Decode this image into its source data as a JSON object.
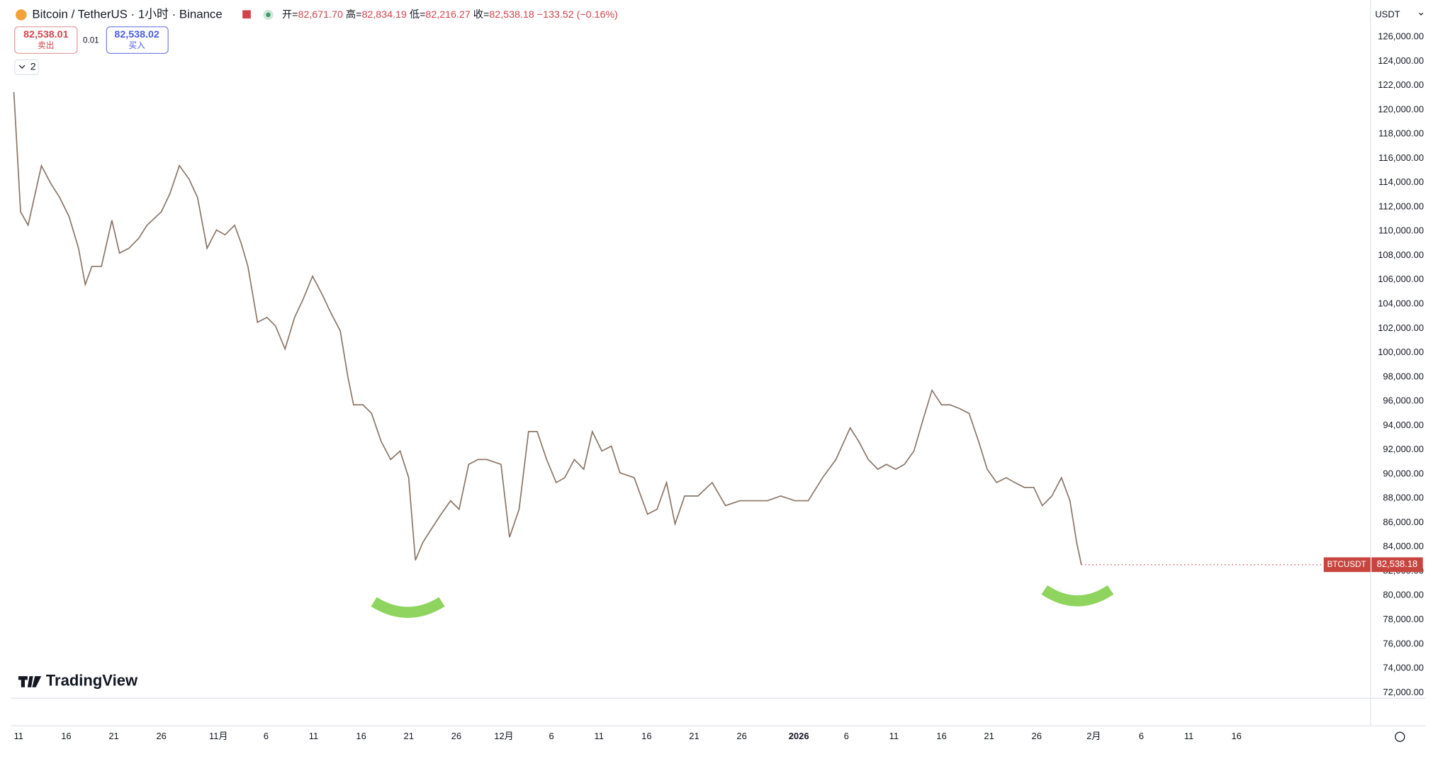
{
  "header": {
    "symbol": "Bitcoin / TetherUS · 1小时 · Binance",
    "open_label": "开=",
    "open": "82,671.70",
    "high_label": "高=",
    "high": "82,834.19",
    "low_label": "低=",
    "low": "82,216.27",
    "close_label": "收=",
    "close": "82,538.18",
    "change": "−133.52 (−0.16%)",
    "sell_price": "82,538.01",
    "sell_label": "卖出",
    "spread": "0.01",
    "buy_price": "82,538.02",
    "buy_label": "买入",
    "indicators_count": "2",
    "currency": "USDT",
    "watermark": "TradingView"
  },
  "chart_data": {
    "type": "line",
    "x": [
      -0.5,
      0.2,
      1,
      2.4,
      3.4,
      4.3,
      5.3,
      6.3,
      7,
      7.7,
      8.7,
      9.8,
      10.6,
      11.6,
      12.6,
      13.5,
      15,
      15.9,
      16.9,
      17.9,
      18.8,
      19.8,
      20.8,
      21.7,
      22.7,
      23.4,
      24.1,
      25.1,
      26.1,
      27,
      28,
      29,
      29.9,
      30.9,
      31.9,
      32.8,
      33.8,
      34.6,
      35.2,
      36.2,
      37.1,
      38.1,
      39.1,
      40.1,
      41,
      41.7,
      42.5,
      43.4,
      44.4,
      45.4,
      46.3,
      47.3,
      48.3,
      49.2,
      50.7,
      51.6,
      52.6,
      53.6,
      54.5,
      55.5,
      56.5,
      57.4,
      58.4,
      59.4,
      60.3,
      61.3,
      62.3,
      63.2,
      64.7,
      66.1,
      67.1,
      68.1,
      69,
      70,
      71.4,
      72.9,
      74.3,
      75.8,
      77.2,
      78.7,
      80.1,
      81.6,
      83,
      84.5,
      85.9,
      87.4,
      88.3,
      89.3,
      90.3,
      91.2,
      92.2,
      93.1,
      94.1,
      95.1,
      96,
      97,
      97.9,
      98.9,
      99.9,
      100.9,
      101.8,
      102.8,
      103.8,
      104.7,
      105.7,
      106.7,
      107.6,
      108.6,
      109.6,
      110.5,
      111.2,
      111.7
    ],
    "series": [
      {
        "name": "BTCUSDT",
        "color": "#8a7566",
        "values": [
          121460,
          111600,
          110500,
          115400,
          113900,
          112800,
          111200,
          108600,
          105600,
          107100,
          107100,
          110900,
          108200,
          108600,
          109400,
          110500,
          111600,
          113100,
          115400,
          114300,
          112800,
          108600,
          110100,
          109700,
          110500,
          109000,
          107100,
          102500,
          102900,
          102200,
          100300,
          102900,
          104400,
          106300,
          104800,
          103300,
          101800,
          98000,
          95700,
          95700,
          95000,
          92700,
          91200,
          91900,
          89700,
          82900,
          84400,
          85500,
          86700,
          87800,
          87100,
          90800,
          91200,
          91200,
          90800,
          84800,
          87100,
          93500,
          93500,
          91200,
          89300,
          89700,
          91200,
          90400,
          93500,
          91900,
          92300,
          90100,
          89700,
          86700,
          87100,
          89300,
          85900,
          88200,
          88200,
          89300,
          87400,
          87800,
          87800,
          87800,
          88200,
          87800,
          87800,
          89700,
          91200,
          93800,
          92700,
          91200,
          90400,
          90800,
          90400,
          90800,
          91900,
          94600,
          96900,
          95700,
          95700,
          95400,
          95000,
          92700,
          90400,
          89300,
          89700,
          89300,
          88900,
          88900,
          87400,
          88200,
          89700,
          87800,
          84400,
          82538.18
        ],
        "value_labels": [
          null,
          null,
          null,
          null,
          null,
          null,
          null,
          null,
          null,
          null,
          null,
          null,
          null,
          null,
          null,
          null,
          null,
          null,
          null,
          null,
          null,
          null,
          null,
          null,
          null,
          null,
          null,
          null,
          null,
          null,
          null,
          null,
          null,
          null,
          null,
          null,
          null,
          null,
          null,
          null,
          null,
          null,
          null,
          null,
          null,
          null,
          null,
          null,
          null,
          null,
          null,
          null,
          null,
          null,
          null,
          null,
          null,
          null,
          null,
          null,
          null,
          null,
          null,
          null,
          null,
          null,
          null,
          null,
          null,
          null,
          null,
          null,
          null,
          null,
          null,
          null,
          null,
          null,
          null,
          null,
          null,
          null,
          null,
          null,
          null,
          null,
          null,
          null,
          null,
          null,
          null,
          null,
          null,
          null,
          null,
          null,
          null,
          null,
          null,
          null,
          null,
          null,
          null,
          null,
          null,
          null,
          null,
          null,
          null,
          null,
          null,
          "82,538.18"
        ]
      }
    ],
    "xlim": [
      -0.8,
      141.9
    ],
    "ylim": [
      71540,
      129030
    ],
    "xticks": [
      {
        "value": 0,
        "label": "11"
      },
      {
        "value": 5,
        "label": "16"
      },
      {
        "value": 10,
        "label": "21"
      },
      {
        "value": 15,
        "label": "26"
      },
      {
        "value": 21,
        "label": "11月"
      },
      {
        "value": 26,
        "label": "6"
      },
      {
        "value": 31,
        "label": "11"
      },
      {
        "value": 36,
        "label": "16"
      },
      {
        "value": 41,
        "label": "21"
      },
      {
        "value": 46,
        "label": "26"
      },
      {
        "value": 51,
        "label": "12月"
      },
      {
        "value": 56,
        "label": "6"
      },
      {
        "value": 61,
        "label": "11"
      },
      {
        "value": 66,
        "label": "16"
      },
      {
        "value": 71,
        "label": "21"
      },
      {
        "value": 76,
        "label": "26"
      },
      {
        "value": 82,
        "label": "2026"
      },
      {
        "value": 87,
        "label": "6"
      },
      {
        "value": 92,
        "label": "11"
      },
      {
        "value": 97,
        "label": "16"
      },
      {
        "value": 102,
        "label": "21"
      },
      {
        "value": 107,
        "label": "26"
      },
      {
        "value": 113,
        "label": "2月"
      },
      {
        "value": 118,
        "label": "6"
      },
      {
        "value": 123,
        "label": "11"
      },
      {
        "value": 128,
        "label": "16"
      }
    ],
    "yticks": [
      {
        "value": 72000,
        "label": "72,000.00"
      },
      {
        "value": 74000,
        "label": "74,000.00"
      },
      {
        "value": 76000,
        "label": "76,000.00"
      },
      {
        "value": 78000,
        "label": "78,000.00"
      },
      {
        "value": 80000,
        "label": "80,000.00"
      },
      {
        "value": 82000,
        "label": "82,000.00"
      },
      {
        "value": 84000,
        "label": "84,000.00"
      },
      {
        "value": 86000,
        "label": "86,000.00"
      },
      {
        "value": 88000,
        "label": "88,000.00"
      },
      {
        "value": 90000,
        "label": "90,000.00"
      },
      {
        "value": 92000,
        "label": "92,000.00"
      },
      {
        "value": 94000,
        "label": "94,000.00"
      },
      {
        "value": 96000,
        "label": "96,000.00"
      },
      {
        "value": 98000,
        "label": "98,000.00"
      },
      {
        "value": 100000,
        "label": "100,000.00"
      },
      {
        "value": 102000,
        "label": "102,000.00"
      },
      {
        "value": 104000,
        "label": "104,000.00"
      },
      {
        "value": 106000,
        "label": "106,000.00"
      },
      {
        "value": 108000,
        "label": "108,000.00"
      },
      {
        "value": 110000,
        "label": "110,000.00"
      },
      {
        "value": 112000,
        "label": "112,000.00"
      },
      {
        "value": 114000,
        "label": "114,000.00"
      },
      {
        "value": 116000,
        "label": "116,000.00"
      },
      {
        "value": 118000,
        "label": "118,000.00"
      },
      {
        "value": 120000,
        "label": "120,000.00"
      },
      {
        "value": 122000,
        "label": "122,000.00"
      },
      {
        "value": 124000,
        "label": "124,000.00"
      },
      {
        "value": 126000,
        "label": "126,000.00"
      }
    ],
    "grid": false,
    "price_tag_color": "#c8453f"
  }
}
